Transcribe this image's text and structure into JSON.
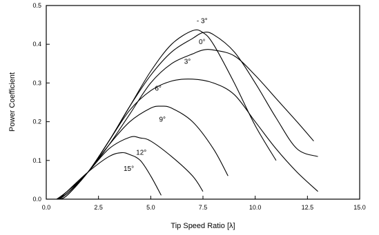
{
  "chart_data": {
    "type": "line",
    "title": "",
    "xlabel": "Tip Speed Ratio [λ]",
    "ylabel": "Power Coefficient",
    "xlim": [
      0,
      15
    ],
    "ylim": [
      0,
      0.5
    ],
    "x_ticks": [
      "0.0",
      "2.5",
      "5.0",
      "7.5",
      "10.0",
      "12.5",
      "15.0"
    ],
    "y_ticks": [
      "0.0",
      "0.1",
      "0.2",
      "0.3",
      "0.4",
      "0.5"
    ],
    "grid": false,
    "legend": "none",
    "series": [
      {
        "name": "- 3°",
        "label_at": [
          7.2,
          0.455
        ],
        "points": [
          [
            0.5,
            0
          ],
          [
            1,
            0.02
          ],
          [
            2,
            0.07
          ],
          [
            3,
            0.15
          ],
          [
            4,
            0.24
          ],
          [
            5,
            0.33
          ],
          [
            6,
            0.4
          ],
          [
            7,
            0.435
          ],
          [
            7.5,
            0.43
          ],
          [
            8,
            0.4
          ],
          [
            9,
            0.3
          ],
          [
            10,
            0.19
          ],
          [
            11,
            0.1
          ]
        ]
      },
      {
        "name": "0°",
        "label_at": [
          7.3,
          0.4
        ],
        "points": [
          [
            0.5,
            0
          ],
          [
            1,
            0.015
          ],
          [
            2,
            0.07
          ],
          [
            3,
            0.15
          ],
          [
            4,
            0.24
          ],
          [
            5,
            0.32
          ],
          [
            6,
            0.38
          ],
          [
            7,
            0.415
          ],
          [
            7.5,
            0.43
          ],
          [
            8,
            0.425
          ],
          [
            9,
            0.38
          ],
          [
            10,
            0.3
          ],
          [
            11,
            0.21
          ],
          [
            12,
            0.13
          ],
          [
            13,
            0.11
          ]
        ]
      },
      {
        "name": "3°",
        "label_at": [
          6.6,
          0.35
        ],
        "points": [
          [
            0.5,
            0
          ],
          [
            1,
            0.015
          ],
          [
            2,
            0.07
          ],
          [
            3,
            0.14
          ],
          [
            4,
            0.22
          ],
          [
            5,
            0.3
          ],
          [
            6,
            0.35
          ],
          [
            7,
            0.375
          ],
          [
            7.5,
            0.385
          ],
          [
            8,
            0.385
          ],
          [
            9,
            0.37
          ],
          [
            10,
            0.32
          ],
          [
            11,
            0.26
          ],
          [
            12,
            0.2
          ],
          [
            12.8,
            0.15
          ]
        ]
      },
      {
        "name": "6°",
        "label_at": [
          5.2,
          0.28
        ],
        "points": [
          [
            0.6,
            0
          ],
          [
            1,
            0.01
          ],
          [
            2,
            0.07
          ],
          [
            3,
            0.15
          ],
          [
            4,
            0.23
          ],
          [
            5,
            0.28
          ],
          [
            6,
            0.305
          ],
          [
            7,
            0.31
          ],
          [
            8,
            0.3
          ],
          [
            9,
            0.27
          ],
          [
            10,
            0.2
          ],
          [
            11,
            0.13
          ],
          [
            12,
            0.07
          ],
          [
            13,
            0.02
          ]
        ]
      },
      {
        "name": "9°",
        "label_at": [
          5.4,
          0.2
        ],
        "points": [
          [
            0.6,
            0
          ],
          [
            1,
            0.01
          ],
          [
            2,
            0.07
          ],
          [
            3,
            0.14
          ],
          [
            4,
            0.2
          ],
          [
            5,
            0.235
          ],
          [
            5.5,
            0.24
          ],
          [
            6,
            0.235
          ],
          [
            7,
            0.2
          ],
          [
            8,
            0.13
          ],
          [
            8.7,
            0.06
          ]
        ]
      },
      {
        "name": "12°",
        "label_at": [
          4.3,
          0.115
        ],
        "points": [
          [
            0.6,
            0
          ],
          [
            1,
            0.015
          ],
          [
            2,
            0.07
          ],
          [
            3,
            0.13
          ],
          [
            4,
            0.16
          ],
          [
            4.5,
            0.158
          ],
          [
            5,
            0.15
          ],
          [
            6,
            0.11
          ],
          [
            7,
            0.06
          ],
          [
            7.5,
            0.02
          ]
        ]
      },
      {
        "name": "15°",
        "label_at": [
          3.7,
          0.073
        ],
        "points": [
          [
            0.6,
            0
          ],
          [
            1,
            0.02
          ],
          [
            2,
            0.07
          ],
          [
            3,
            0.11
          ],
          [
            3.6,
            0.12
          ],
          [
            4,
            0.115
          ],
          [
            4.5,
            0.1
          ],
          [
            5,
            0.06
          ],
          [
            5.5,
            0.01
          ]
        ]
      }
    ]
  }
}
